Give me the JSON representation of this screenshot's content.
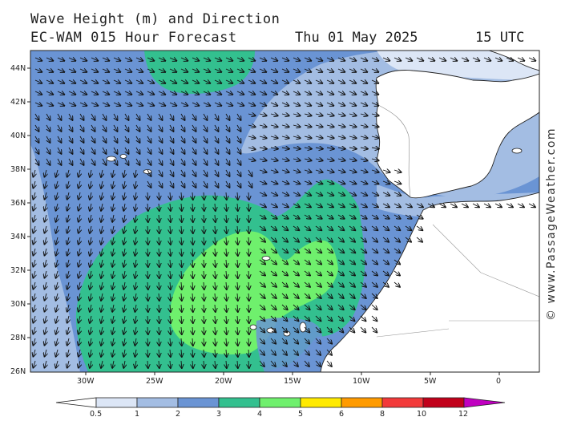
{
  "header": {
    "title": "Wave Height (m) and Direction",
    "model_line": "EC-WAM 015 Hour Forecast",
    "date": "Thu 01 May 2025",
    "time": "15 UTC"
  },
  "credit": "© www.PassageWeather.com",
  "map": {
    "lat_labels": [
      "44N",
      "42N",
      "40N",
      "38N",
      "36N",
      "34N",
      "32N",
      "30N",
      "28N",
      "26N"
    ],
    "lon_labels": [
      "30W",
      "25W",
      "20W",
      "15W",
      "10W",
      "5W",
      "0"
    ],
    "land_color": "#ffffff",
    "wave_colors": {
      "0-0.5": "#ffffff",
      "0.5-1": "#dce6f6",
      "1-2": "#a3bde3",
      "2-3": "#6a94d4",
      "3-4": "#33c08f",
      "4-5": "#6ff06d",
      "5-6": "#ffea00",
      "6-8": "#ff9b00",
      "8-10": "#f23a3a",
      "10-12": "#c1001a",
      "12+": "#c000c0"
    }
  },
  "legend": {
    "labels": [
      "0.5",
      "1",
      "2",
      "3",
      "4",
      "5",
      "6",
      "8",
      "10",
      "12"
    ],
    "colors": [
      "#ffffff",
      "#dce6f6",
      "#a3bde3",
      "#6a94d4",
      "#33c08f",
      "#6ff06d",
      "#ffea00",
      "#ff9b00",
      "#f23a3a",
      "#c1001a",
      "#c000c0"
    ]
  }
}
